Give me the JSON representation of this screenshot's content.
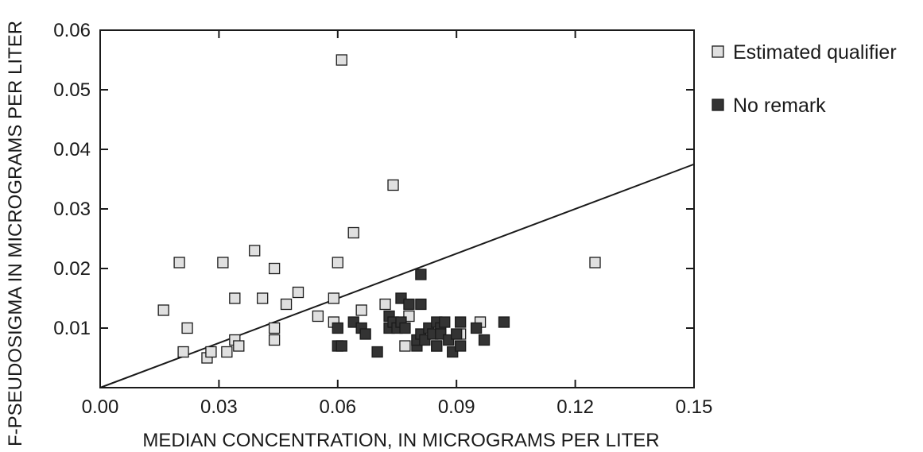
{
  "chart_data": {
    "type": "scatter",
    "xlabel": "MEDIAN CONCENTRATION, IN MICROGRAMS PER LITER",
    "ylabel": "F-PSEUDOSIGMA IN MICROGRAMS PER LITER",
    "xlim": [
      0,
      0.15
    ],
    "ylim": [
      0,
      0.06
    ],
    "x_ticks": [
      "0.00",
      "0.03",
      "0.06",
      "0.09",
      "0.12",
      "0.15"
    ],
    "y_ticks": [
      "0.01",
      "0.02",
      "0.03",
      "0.04",
      "0.05",
      "0.06"
    ],
    "legend_position": "right",
    "reference_line": {
      "x": [
        0,
        0.15
      ],
      "y": [
        0,
        0.0375
      ]
    },
    "series": [
      {
        "name": "Estimated qualifier",
        "marker": "square",
        "fill": "#e0e0e0",
        "x": [
          0.016,
          0.02,
          0.021,
          0.022,
          0.027,
          0.028,
          0.031,
          0.032,
          0.034,
          0.034,
          0.035,
          0.039,
          0.041,
          0.044,
          0.044,
          0.044,
          0.047,
          0.05,
          0.055,
          0.059,
          0.059,
          0.06,
          0.061,
          0.064,
          0.066,
          0.072,
          0.074,
          0.077,
          0.078,
          0.085,
          0.091,
          0.096,
          0.125
        ],
        "y": [
          0.013,
          0.021,
          0.006,
          0.01,
          0.005,
          0.006,
          0.021,
          0.006,
          0.015,
          0.008,
          0.007,
          0.023,
          0.015,
          0.02,
          0.01,
          0.008,
          0.014,
          0.016,
          0.012,
          0.015,
          0.011,
          0.021,
          0.055,
          0.026,
          0.013,
          0.014,
          0.034,
          0.007,
          0.012,
          0.007,
          0.009,
          0.011,
          0.021
        ]
      },
      {
        "name": "No remark",
        "marker": "square",
        "fill": "#333333",
        "x": [
          0.06,
          0.06,
          0.061,
          0.064,
          0.066,
          0.067,
          0.07,
          0.073,
          0.073,
          0.074,
          0.075,
          0.076,
          0.076,
          0.077,
          0.078,
          0.08,
          0.08,
          0.081,
          0.081,
          0.081,
          0.082,
          0.083,
          0.084,
          0.085,
          0.085,
          0.086,
          0.086,
          0.087,
          0.088,
          0.089,
          0.09,
          0.091,
          0.091,
          0.095,
          0.097,
          0.102
        ],
        "y": [
          0.01,
          0.007,
          0.007,
          0.011,
          0.01,
          0.009,
          0.006,
          0.012,
          0.01,
          0.011,
          0.01,
          0.015,
          0.011,
          0.01,
          0.014,
          0.007,
          0.008,
          0.019,
          0.014,
          0.009,
          0.008,
          0.01,
          0.009,
          0.011,
          0.007,
          0.01,
          0.009,
          0.011,
          0.008,
          0.006,
          0.009,
          0.011,
          0.007,
          0.01,
          0.008,
          0.011
        ]
      }
    ]
  }
}
